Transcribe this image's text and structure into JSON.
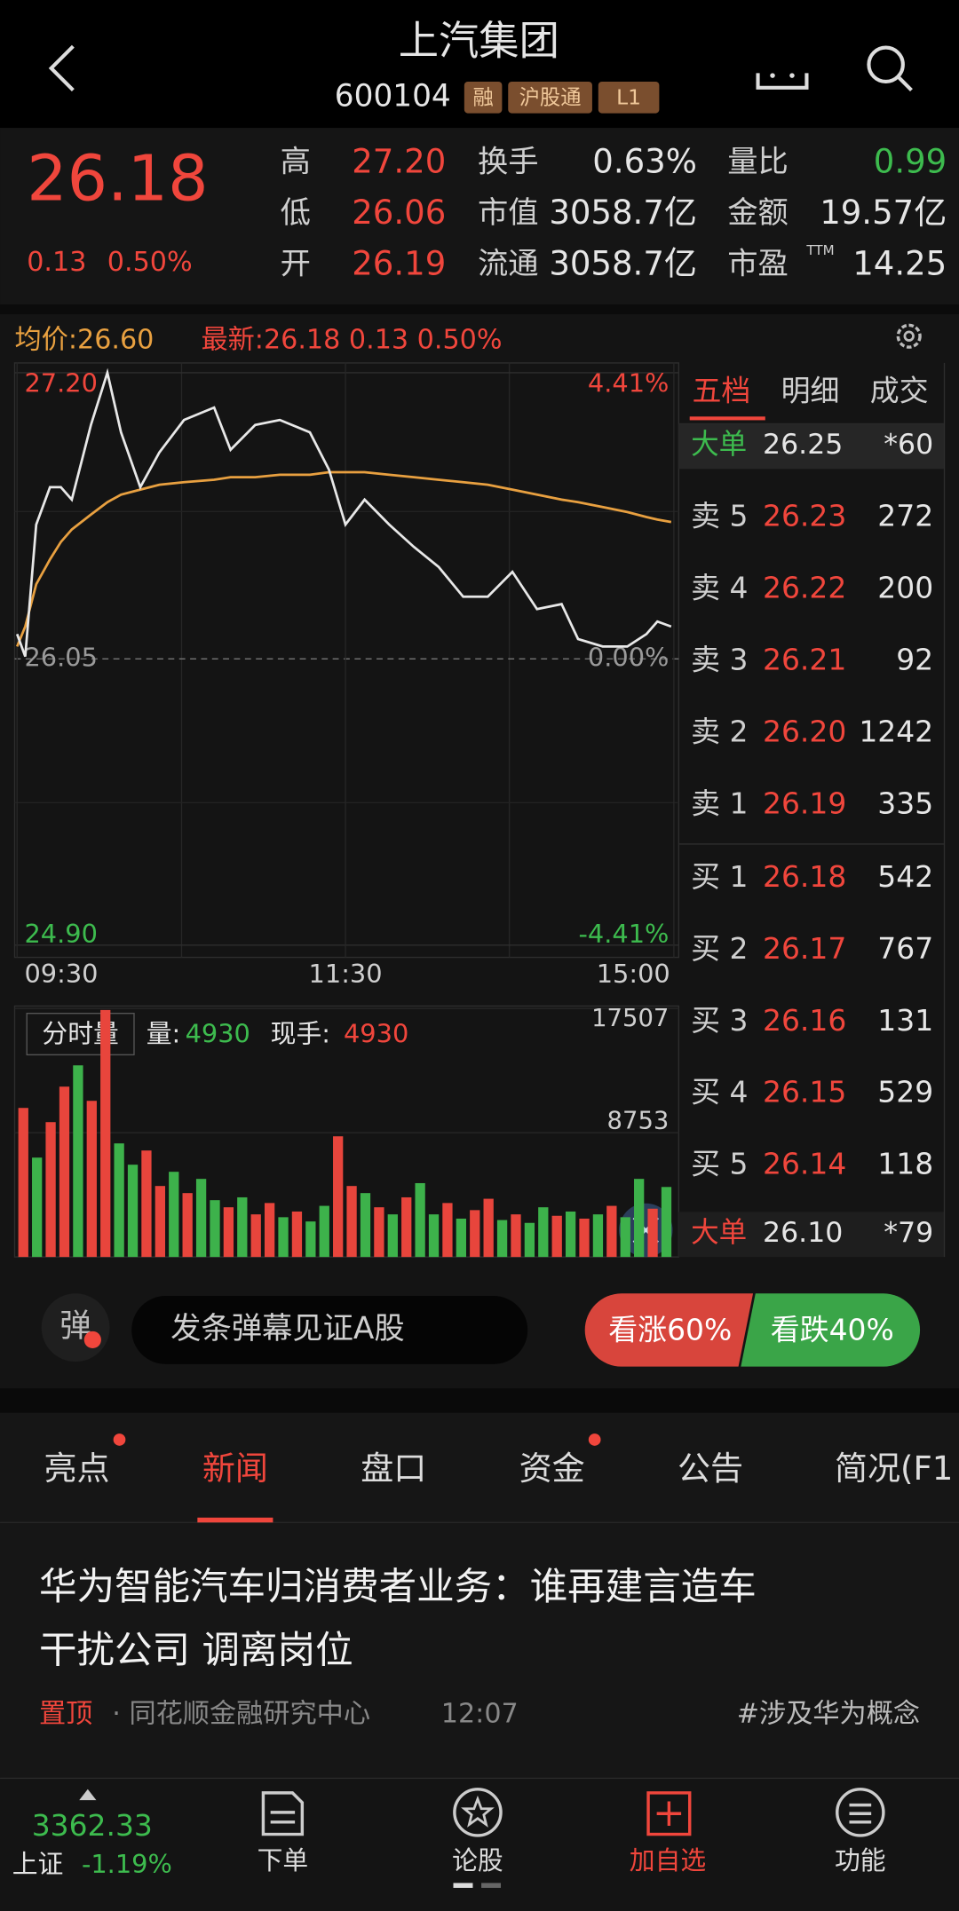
{
  "header": {
    "title": "上汽集团",
    "code": "600104",
    "tags": [
      "融",
      "沪股通",
      "L1"
    ]
  },
  "quote": {
    "price": "26.18",
    "change": "0.13",
    "change_pct": "0.50%",
    "stats": [
      [
        "高",
        "27.20"
      ],
      [
        "低",
        "26.06"
      ],
      [
        "开",
        "26.19"
      ],
      [
        "换手",
        "0.63%"
      ],
      [
        "市值",
        "3058.7亿"
      ],
      [
        "流通",
        "3058.7亿"
      ],
      [
        "量比",
        "0.99"
      ],
      [
        "金额",
        "19.57亿"
      ],
      [
        "市盈",
        "14.25"
      ]
    ],
    "pe_sup": "TTM"
  },
  "chart_legend": {
    "avg": "均价:26.60",
    "latest": "最新:26.18 0.13 0.50%"
  },
  "chart_data": [
    {
      "type": "line",
      "x": [
        0,
        3,
        7,
        12,
        16,
        20,
        27,
        33,
        38,
        45,
        52,
        61,
        72,
        78,
        87,
        96,
        107,
        114,
        120,
        127,
        136,
        145,
        154,
        163,
        172,
        181,
        190,
        199,
        205,
        214,
        223,
        230,
        234,
        239
      ],
      "series": [
        {
          "color": "#e8e8e8",
          "values": [
            26.15,
            26.06,
            26.59,
            26.74,
            26.74,
            26.69,
            26.99,
            27.2,
            26.96,
            26.74,
            26.88,
            27.01,
            27.06,
            26.89,
            26.99,
            27.01,
            26.96,
            26.81,
            26.59,
            26.69,
            26.59,
            26.5,
            26.42,
            26.3,
            26.3,
            26.4,
            26.25,
            26.27,
            26.13,
            26.1,
            26.1,
            26.15,
            26.2,
            26.18
          ]
        },
        {
          "color": "#e8a040",
          "values": [
            26.1,
            26.18,
            26.35,
            26.45,
            26.52,
            26.57,
            26.63,
            26.68,
            26.71,
            26.73,
            26.75,
            26.76,
            26.77,
            26.78,
            26.78,
            26.79,
            26.79,
            26.8,
            26.8,
            26.8,
            26.79,
            26.78,
            26.77,
            26.76,
            26.75,
            26.73,
            26.71,
            26.69,
            26.68,
            26.66,
            26.64,
            26.62,
            26.61,
            26.6
          ]
        }
      ],
      "xlim": [
        0,
        240
      ],
      "xticks": [
        {
          "value": 0,
          "label": "09:30"
        },
        {
          "value": 120,
          "label": "11:30"
        },
        {
          "value": 240,
          "label": "15:00"
        }
      ],
      "ylim": [
        24.9,
        27.2
      ],
      "yticks": [
        {
          "value": 27.2,
          "label": "27.20"
        },
        {
          "value": 26.05,
          "label": "26.05"
        },
        {
          "value": 24.9,
          "label": "24.90"
        }
      ],
      "y2lim": [
        -4.41,
        4.41
      ],
      "y2ticks": [
        {
          "value": 4.41,
          "label": "4.41%"
        },
        {
          "value": 0,
          "label": "0.00%"
        },
        {
          "value": -4.41,
          "label": "-4.41%"
        }
      ]
    },
    {
      "type": "bar",
      "x": [
        0,
        5,
        10,
        15,
        20,
        25,
        30,
        35,
        40,
        45,
        50,
        55,
        60,
        65,
        70,
        75,
        80,
        85,
        90,
        95,
        100,
        105,
        110,
        115,
        120,
        125,
        130,
        135,
        140,
        145,
        150,
        155,
        160,
        165,
        170,
        175,
        180,
        185,
        190,
        195,
        200,
        205,
        210,
        215,
        220,
        225,
        230,
        235
      ],
      "values": [
        10500,
        7000,
        9500,
        12000,
        13500,
        11000,
        17400,
        8000,
        6500,
        7500,
        5000,
        6000,
        4500,
        5500,
        4000,
        3500,
        4200,
        3000,
        3800,
        2800,
        3200,
        2500,
        3600,
        8500,
        5000,
        4500,
        3500,
        3000,
        4200,
        5200,
        3000,
        3800,
        2700,
        3300,
        4100,
        2600,
        3000,
        2400,
        3500,
        2900,
        3200,
        2700,
        3000,
        3600,
        2800,
        5500,
        3400,
        4930
      ],
      "colors": [
        "#e8453c",
        "#3db24b",
        "#e8453c",
        "#e8453c",
        "#3db24b",
        "#e8453c",
        "#e8453c",
        "#3db24b",
        "#3db24b",
        "#e8453c",
        "#e8453c",
        "#3db24b",
        "#e8453c",
        "#3db24b",
        "#3db24b",
        "#e8453c",
        "#3db24b",
        "#e8453c",
        "#e8453c",
        "#3db24b",
        "#e8453c",
        "#3db24b",
        "#3db24b",
        "#e8453c",
        "#e8453c",
        "#3db24b",
        "#e8453c",
        "#3db24b",
        "#e8453c",
        "#3db24b",
        "#3db24b",
        "#e8453c",
        "#3db24b",
        "#e8453c",
        "#e8453c",
        "#3db24b",
        "#e8453c",
        "#3db24b",
        "#3db24b",
        "#e8453c",
        "#3db24b",
        "#e8453c",
        "#3db24b",
        "#e8453c",
        "#3db24b",
        "#3db24b",
        "#e8453c",
        "#3db24b"
      ],
      "xlim": [
        0,
        240
      ],
      "ylim": [
        0,
        17507
      ],
      "yticks": [
        8753,
        17507
      ]
    }
  ],
  "volume_legend": {
    "title": "分时量",
    "volume_label": "量:",
    "volume_value": "4930",
    "hand_label": "现手:",
    "hand_value": "4930"
  },
  "order_book": {
    "tabs": [
      "五档",
      "明细",
      "成交"
    ],
    "big_top": [
      "大单",
      "26.25",
      "*60"
    ],
    "asks": [
      [
        "卖 5",
        "26.23",
        "272"
      ],
      [
        "卖 4",
        "26.22",
        "200"
      ],
      [
        "卖 3",
        "26.21",
        "92"
      ],
      [
        "卖 2",
        "26.20",
        "1242"
      ],
      [
        "卖 1",
        "26.19",
        "335"
      ]
    ],
    "bids": [
      [
        "买 1",
        "26.18",
        "542"
      ],
      [
        "买 2",
        "26.17",
        "767"
      ],
      [
        "买 3",
        "26.16",
        "131"
      ],
      [
        "买 4",
        "26.15",
        "529"
      ],
      [
        "买 5",
        "26.14",
        "118"
      ]
    ],
    "big_bottom": [
      "大单",
      "26.10",
      "*79"
    ]
  },
  "danmaku": {
    "icon": "弹",
    "placeholder": "发条弹幕见证A股",
    "up": "看涨60%",
    "down": "看跌40%"
  },
  "tabs": [
    "亮点",
    "新闻",
    "盘口",
    "资金",
    "公告",
    "简况(F1"
  ],
  "news": {
    "title_lines": [
      "华为智能汽车归消费者业务：谁再建言造车",
      "干扰公司 调离岗位"
    ],
    "pin": "置顶",
    "source": "· 同花顺金融研究中心",
    "time": "12:07",
    "tag": "#涉及华为概念"
  },
  "bottom_bar": {
    "index_value": "3362.33",
    "index_name": "上证",
    "index_change": "-1.19%",
    "items": [
      "下单",
      "论股",
      "加自选",
      "功能"
    ]
  }
}
